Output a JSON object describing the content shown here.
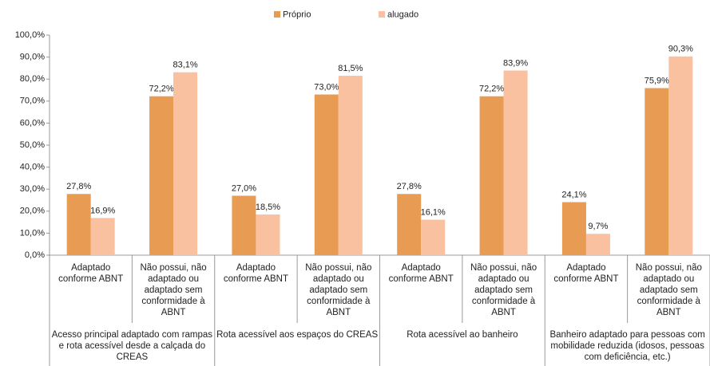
{
  "chart_data": {
    "type": "bar",
    "categories": [
      "Adaptado conforme ABNT",
      "Não possui, não adaptado ou adaptado sem conformidade à ABNT",
      "Adaptado conforme ABNT",
      "Não possui, não adaptado ou adaptado sem conformidade à ABNT",
      "Adaptado conforme ABNT",
      "Não possui, não adaptado ou adaptado sem conformidade à ABNT",
      "Adaptado conforme ABNT",
      "Não possui, não adaptado ou adaptado sem conformidade à ABNT"
    ],
    "groups": [
      "Acesso principal adaptado com rampas e rota acessível desde a calçada do CREAS",
      "Rota acessível aos espaços do CREAS",
      "Rota acessível ao banheiro",
      "Banheiro adaptado para pessoas com mobilidade reduzida (idosos, pessoas com deficiência, etc.)"
    ],
    "series": [
      {
        "name": "Próprio",
        "color": "#e89b52",
        "values": [
          27.8,
          72.2,
          27.0,
          73.0,
          27.8,
          72.2,
          24.1,
          75.9
        ],
        "value_labels": [
          "27,8%",
          "72,2%",
          "27,0%",
          "73,0%",
          "27,8%",
          "72,2%",
          "24,1%",
          "75,9%"
        ]
      },
      {
        "name": "alugado",
        "color": "#f9c19f",
        "values": [
          16.9,
          83.1,
          18.5,
          81.5,
          16.1,
          83.9,
          9.7,
          90.3
        ],
        "value_labels": [
          "16,9%",
          "83,1%",
          "18,5%",
          "81,5%",
          "16,1%",
          "83,9%",
          "9,7%",
          "90,3%"
        ]
      }
    ],
    "ylim": [
      0,
      100
    ],
    "yticks": [
      {
        "value": 0,
        "label": "0,0%"
      },
      {
        "value": 10,
        "label": "10,0%"
      },
      {
        "value": 20,
        "label": "20,0%"
      },
      {
        "value": 30,
        "label": "30,0%"
      },
      {
        "value": 40,
        "label": "40,0%"
      },
      {
        "value": 50,
        "label": "50,0%"
      },
      {
        "value": 60,
        "label": "60,0%"
      },
      {
        "value": 70,
        "label": "70,0%"
      },
      {
        "value": 80,
        "label": "80,0%"
      },
      {
        "value": 90,
        "label": "90,0%"
      },
      {
        "value": 100,
        "label": "100,0%"
      }
    ],
    "legend": "top"
  }
}
